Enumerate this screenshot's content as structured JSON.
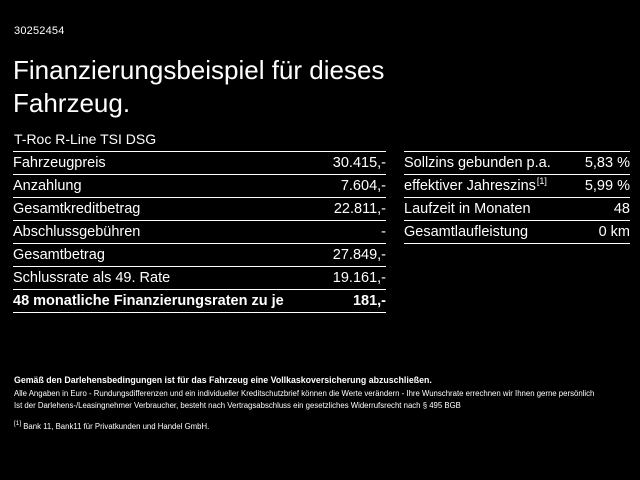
{
  "page": {
    "id_number": "30252454",
    "title": "Finanzierungsbeispiel für dieses Fahrzeug.",
    "vehicle": "T-Roc R-Line TSI DSG"
  },
  "tables": {
    "left": {
      "rows": [
        {
          "label": "Fahrzeugpreis",
          "value": "30.415,-"
        },
        {
          "label": "Anzahlung",
          "value": "7.604,-"
        },
        {
          "label": "Gesamtkreditbetrag",
          "value": "22.811,-"
        },
        {
          "label": "Abschlussgebühren",
          "value": "-"
        },
        {
          "label": "Gesamtbetrag",
          "value": "27.849,-"
        },
        {
          "label": "Schlussrate als 49. Rate",
          "value": "19.161,-"
        },
        {
          "label": "48 monatliche Finanzierungsraten zu je",
          "value": "181,-"
        }
      ]
    },
    "right": {
      "rows": [
        {
          "label": "Sollzins gebunden p.a.",
          "value": "5,83 %"
        },
        {
          "label": "effektiver Jahreszins",
          "sup": "[1]",
          "value": "5,99 %"
        },
        {
          "label": "Laufzeit in Monaten",
          "value": "48"
        },
        {
          "label": "Gesamtlaufleistung",
          "value": "0 km"
        }
      ]
    }
  },
  "footer": {
    "line1": "Gemäß den Darlehensbedingungen ist für das Fahrzeug eine Vollkaskoversicherung abzuschließen.",
    "line2": "Alle Angaben in Euro - Rundungsdifferenzen und ein individueller Kreditschutzbrief können die Werte verändern - Ihre Wunschrate errechnen wir Ihnen gerne persönlich",
    "line3": "Ist der Darlehens-/Leasingnehmer Verbraucher, besteht nach Vertragsabschluss ein gesetzliches Widerrufsrecht nach § 495 BGB",
    "footnote_marker": "[1]",
    "footnote_text": "Bank 11, Bank11 für Privatkunden und Handel GmbH."
  },
  "colors": {
    "background": "#000000",
    "text": "#ffffff",
    "divider": "#ffffff"
  }
}
